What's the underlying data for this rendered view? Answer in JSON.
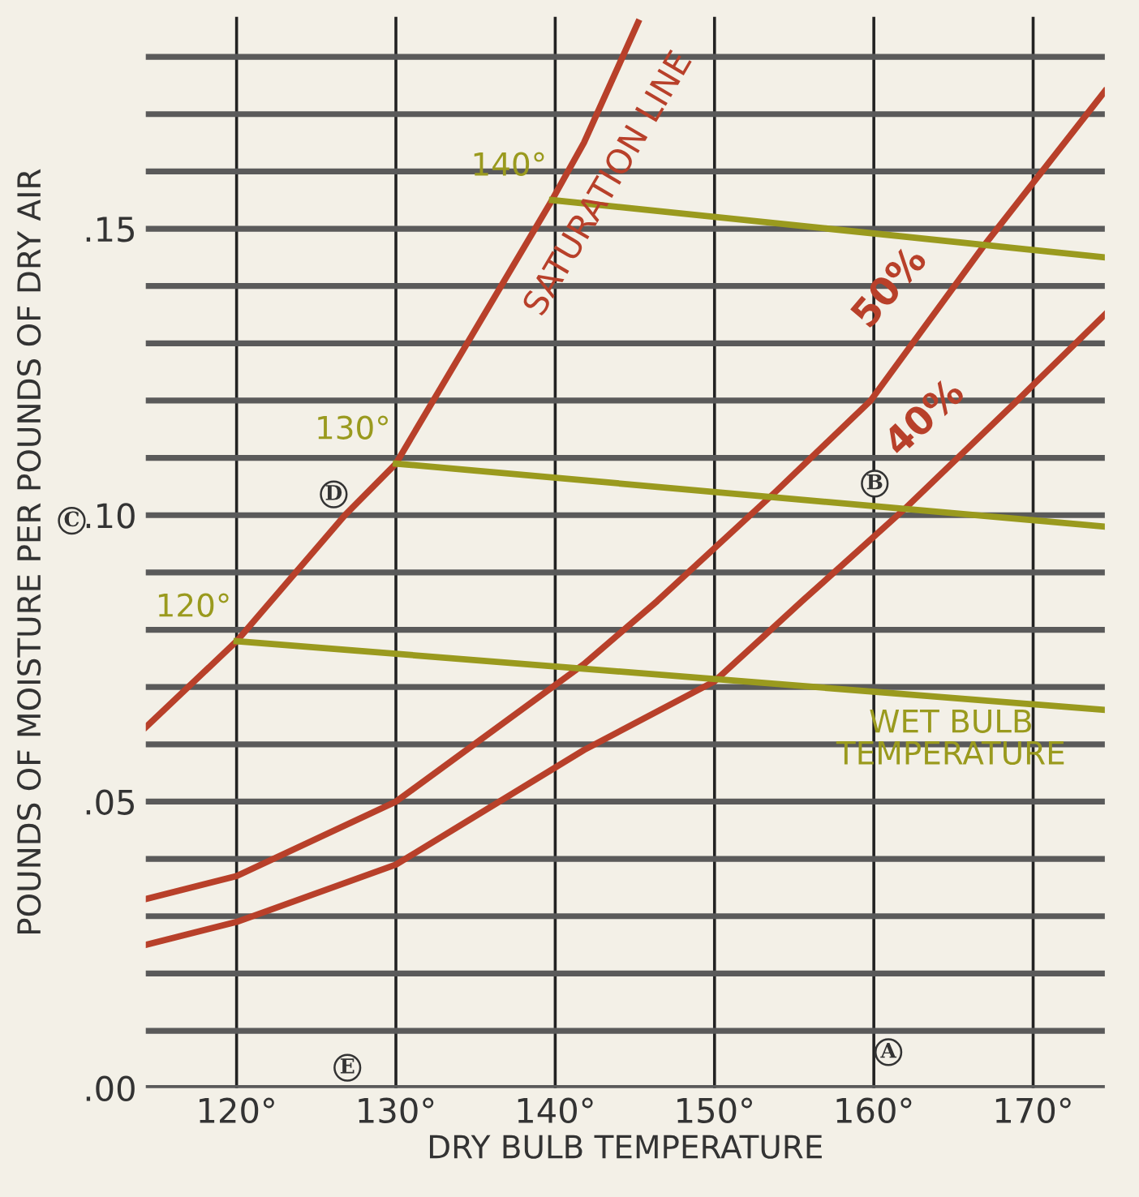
{
  "chart_data": {
    "type": "line",
    "xlabel": "DRY BULB TEMPERATURE",
    "ylabel": "POUNDS OF MOISTURE PER POUNDS OF DRY AIR",
    "xlim": [
      114.3,
      174.5
    ],
    "ylim": [
      0,
      0.187
    ],
    "xticks": [
      {
        "value": 120,
        "label": "120°"
      },
      {
        "value": 130,
        "label": "130°"
      },
      {
        "value": 140,
        "label": "140°"
      },
      {
        "value": 150,
        "label": "150°"
      },
      {
        "value": 160,
        "label": "160°"
      },
      {
        "value": 170,
        "label": "170°"
      }
    ],
    "yticks": [
      {
        "value": 0,
        "label": ".00"
      },
      {
        "value": 0.01,
        "label": null
      },
      {
        "value": 0.02,
        "label": null
      },
      {
        "value": 0.03,
        "label": null
      },
      {
        "value": 0.04,
        "label": null
      },
      {
        "value": 0.05,
        "label": ".05"
      },
      {
        "value": 0.06,
        "label": null
      },
      {
        "value": 0.07,
        "label": null
      },
      {
        "value": 0.08,
        "label": null
      },
      {
        "value": 0.09,
        "label": null
      },
      {
        "value": 0.1,
        "label": ".10"
      },
      {
        "value": 0.11,
        "label": null
      },
      {
        "value": 0.12,
        "label": null
      },
      {
        "value": 0.13,
        "label": null
      },
      {
        "value": 0.14,
        "label": null
      },
      {
        "value": 0.15,
        "label": ".15"
      },
      {
        "value": 0.16,
        "label": null
      },
      {
        "value": 0.17,
        "label": null
      },
      {
        "value": 0.18,
        "label": null
      }
    ],
    "grid": true,
    "legend": false,
    "marker": "none",
    "line_style": "solid",
    "series": [
      {
        "name": "SATURATION LINE",
        "color": "#b8402a",
        "x": [
          114.3,
          120,
          126.8,
          130,
          139.8,
          141.8,
          145.2
        ],
        "values": [
          0.063,
          0.078,
          0.1,
          0.109,
          0.155,
          0.165,
          0.186
        ]
      },
      {
        "name": "50%",
        "color": "#b8402a",
        "x": [
          114.3,
          120,
          130,
          141.8,
          146.4,
          153.8,
          159.8,
          166.9,
          174.5
        ],
        "values": [
          0.033,
          0.037,
          0.05,
          0.074,
          0.085,
          0.104,
          0.12,
          0.147,
          0.174
        ]
      },
      {
        "name": "40%",
        "color": "#b8402a",
        "x": [
          114.3,
          120,
          130,
          141.8,
          150,
          155.5,
          161.9,
          169,
          174.5
        ],
        "values": [
          0.025,
          0.029,
          0.039,
          0.059,
          0.071,
          0.085,
          0.101,
          0.12,
          0.135
        ]
      },
      {
        "name": "120°",
        "color": "#9a9a1e",
        "x": [
          120,
          174.5
        ],
        "values": [
          0.078,
          0.066
        ]
      },
      {
        "name": "130°",
        "color": "#9a9a1e",
        "x": [
          130,
          174.5
        ],
        "values": [
          0.109,
          0.098
        ]
      },
      {
        "name": "140°",
        "color": "#9a9a1e",
        "x": [
          139.8,
          174.5
        ],
        "values": [
          0.155,
          0.145
        ]
      }
    ],
    "annotations": [
      "WET BULB\nTEMPERATURE",
      "A",
      "B",
      "D",
      "E",
      "C"
    ]
  }
}
